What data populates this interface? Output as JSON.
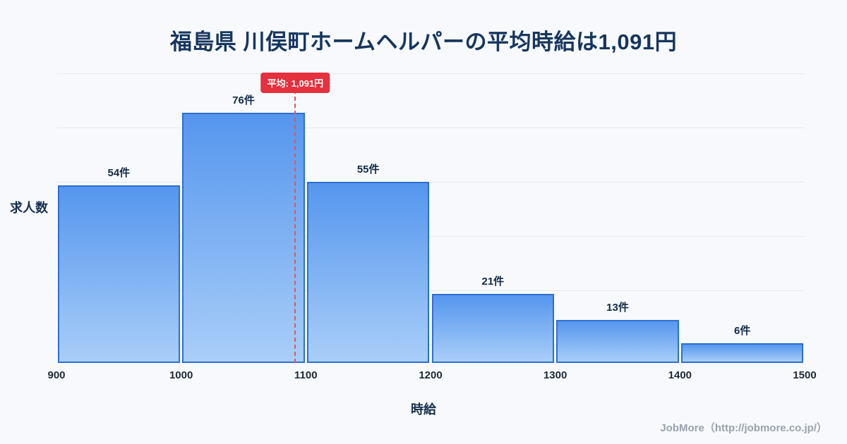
{
  "title": "福島県 川俣町ホームヘルパーの平均時給は1,091円",
  "chart_data": {
    "type": "bar",
    "title": "福島県 川俣町ホームヘルパーの平均時給は1,091円",
    "categories": [
      "900-1000",
      "1000-1100",
      "1100-1200",
      "1200-1300",
      "1300-1400",
      "1400-1500"
    ],
    "values": [
      54,
      76,
      55,
      21,
      13,
      6
    ],
    "bar_labels": [
      "54件",
      "76件",
      "55件",
      "21件",
      "13件",
      "6件"
    ],
    "x_ticks": [
      "900",
      "1000",
      "1100",
      "1200",
      "1300",
      "1400",
      "1500"
    ],
    "xlabel": "時給",
    "ylabel": "求人数",
    "xlim": [
      900,
      1500
    ],
    "ylim": [
      0,
      80
    ],
    "grid": "horizontal",
    "legend": "none",
    "average": 1091,
    "average_label": "平均: 1,091円",
    "colors": {
      "bar_fill_top": "#5596ee",
      "bar_fill_bottom": "#a9cef8",
      "bar_border": "#2d6fd2",
      "average_line": "#e85456",
      "average_badge_bg": "#e5303e",
      "grid": "#e3e9f2",
      "title": "#16365f",
      "background": "#f7f9fc"
    }
  },
  "footer": {
    "credit": "JobMore（http://jobmore.co.jp/）"
  }
}
